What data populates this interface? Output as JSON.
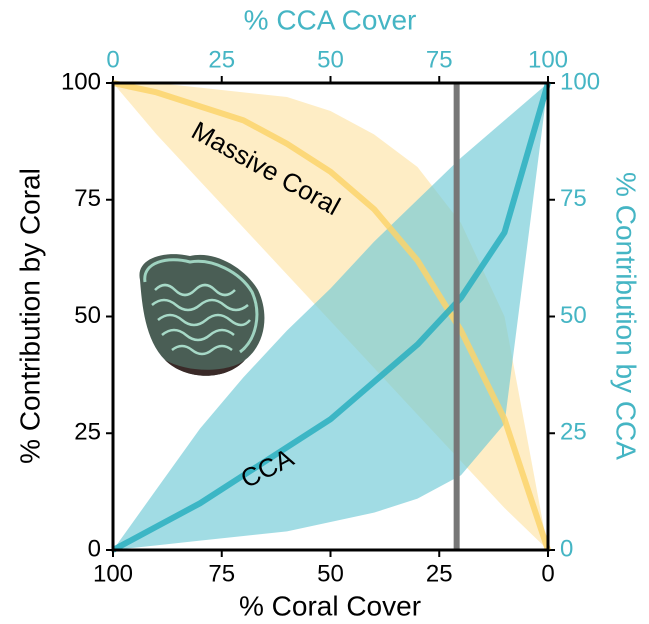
{
  "chart_data": {
    "type": "line",
    "x_label": "% Coral Cover",
    "x2_label": "% CCA Cover",
    "y_label": "% Contribution by Coral",
    "y2_label": "% Contribution by CCA",
    "x": [
      100,
      90,
      80,
      70,
      60,
      50,
      40,
      30,
      20,
      10,
      0
    ],
    "xlim": [
      100,
      0
    ],
    "xticks": [
      100,
      75,
      50,
      25,
      0
    ],
    "x2lim": [
      0,
      100
    ],
    "x2ticks": [
      0,
      25,
      50,
      75,
      100
    ],
    "ylim": [
      0,
      100
    ],
    "yticks": [
      0,
      25,
      50,
      75,
      100
    ],
    "y2lim": [
      0,
      100
    ],
    "y2ticks": [
      0,
      25,
      50,
      75,
      100
    ],
    "vline": 21,
    "series": [
      {
        "name": "Massive Coral",
        "color": "#fcd36b",
        "band_color": "#fde3a6",
        "values": [
          100,
          98,
          95,
          92,
          87,
          81,
          73,
          62,
          47,
          28,
          0
        ],
        "upper": [
          100,
          100,
          99,
          98,
          97,
          94,
          89,
          82,
          70,
          50,
          0
        ],
        "lower": [
          100,
          89,
          79,
          69,
          59,
          49,
          39,
          29,
          19,
          9,
          0
        ]
      },
      {
        "name": "CCA",
        "color": "#2aafc0",
        "band_color": "#6ec9d5",
        "axis": "y2",
        "values": [
          0,
          5,
          10,
          16,
          22,
          28,
          36,
          44,
          54,
          68,
          100
        ],
        "upper": [
          0,
          13,
          26,
          37,
          47,
          56,
          66,
          75,
          84,
          92,
          100
        ],
        "lower": [
          0,
          1,
          2,
          3,
          4,
          6,
          8,
          11,
          16,
          27,
          100
        ]
      }
    ]
  }
}
